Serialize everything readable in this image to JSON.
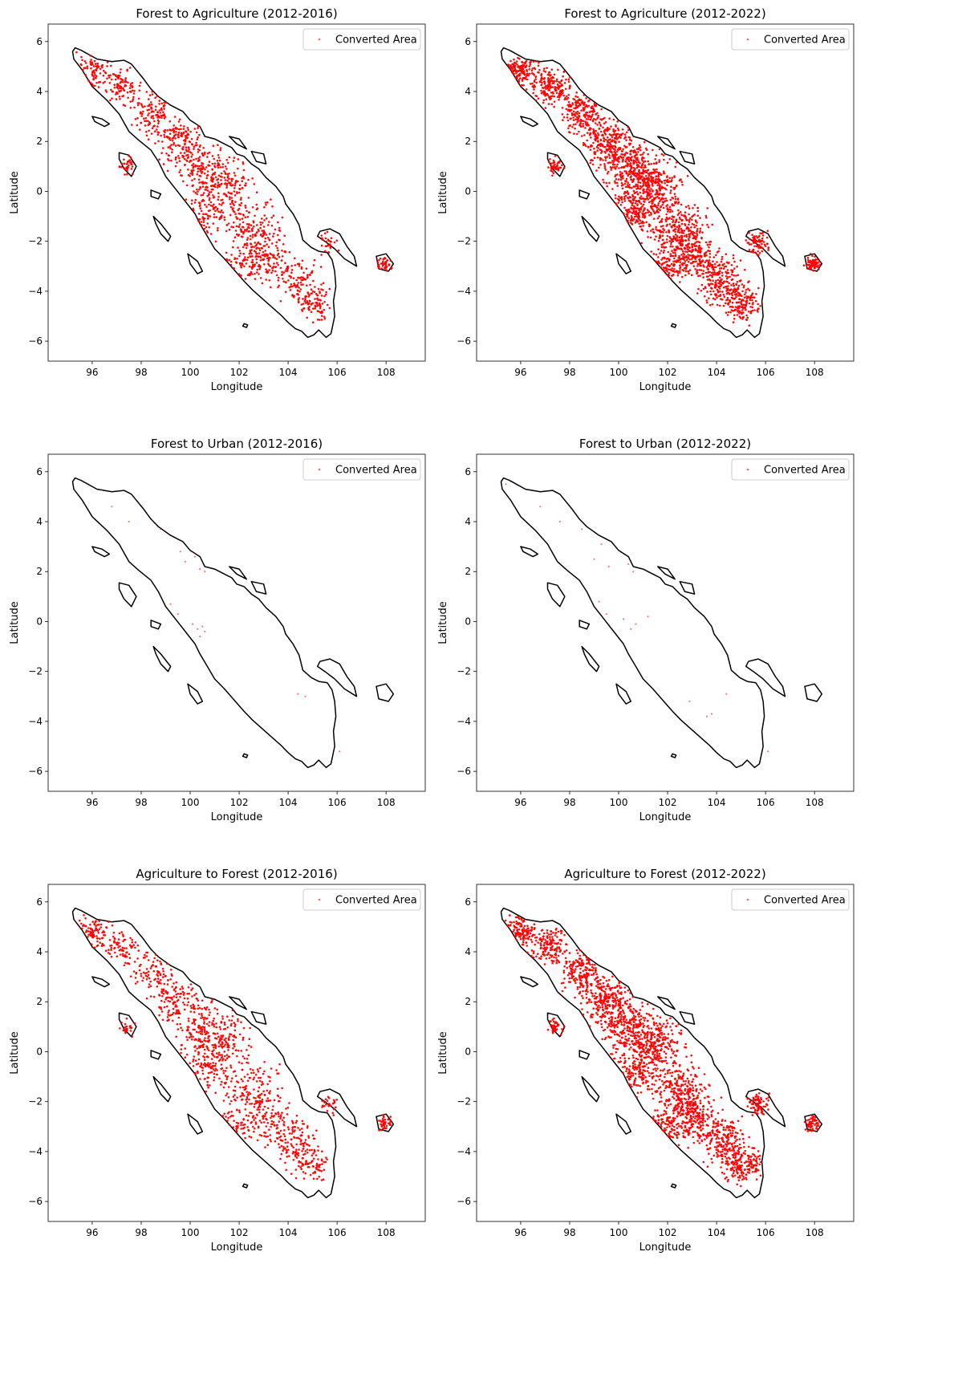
{
  "colors": {
    "point": "#ff0000",
    "coastline": "#000000",
    "background": "#ffffff"
  },
  "chart_data": [
    {
      "type": "scatter",
      "title": "Forest to Agriculture (2012-2016)",
      "xlabel": "Longitude",
      "ylabel": "Latitude",
      "xlim": [
        94.2,
        109.6
      ],
      "ylim": [
        -6.8,
        6.7
      ],
      "xticks": [
        "96",
        "98",
        "100",
        "102",
        "104",
        "106",
        "108"
      ],
      "yticks": [
        "-6",
        "-4",
        "-2",
        "0",
        "2",
        "4",
        "6"
      ],
      "legend": {
        "label": "Converted Area",
        "position": "top-right"
      },
      "density": 0.55,
      "seed": 11
    },
    {
      "type": "scatter",
      "title": "Forest to Agriculture (2012-2022)",
      "xlabel": "Longitude",
      "ylabel": "Latitude",
      "xlim": [
        94.2,
        109.6
      ],
      "ylim": [
        -6.8,
        6.7
      ],
      "xticks": [
        "96",
        "98",
        "100",
        "102",
        "104",
        "106",
        "108"
      ],
      "yticks": [
        "-6",
        "-4",
        "-2",
        "0",
        "2",
        "4",
        "6"
      ],
      "legend": {
        "label": "Converted Area",
        "position": "top-right"
      },
      "density": 1.0,
      "seed": 23
    },
    {
      "type": "scatter",
      "title": "Forest to Urban (2012-2016)",
      "xlabel": "Longitude",
      "ylabel": "Latitude",
      "xlim": [
        94.2,
        109.6
      ],
      "ylim": [
        -6.8,
        6.7
      ],
      "xticks": [
        "96",
        "98",
        "100",
        "102",
        "104",
        "106",
        "108"
      ],
      "yticks": [
        "-6",
        "-4",
        "-2",
        "0",
        "2",
        "4",
        "6"
      ],
      "legend": {
        "label": "Converted Area",
        "position": "top-right"
      },
      "points": [
        [
          96.8,
          4.6
        ],
        [
          97.5,
          4.0
        ],
        [
          98.8,
          3.7
        ],
        [
          99.6,
          2.8
        ],
        [
          99.8,
          2.4
        ],
        [
          100.2,
          2.6
        ],
        [
          100.4,
          2.1
        ],
        [
          100.6,
          2.0
        ],
        [
          99.2,
          0.7
        ],
        [
          99.5,
          0.3
        ],
        [
          100.1,
          -0.1
        ],
        [
          100.3,
          -0.3
        ],
        [
          100.5,
          -0.2
        ],
        [
          100.6,
          -0.4
        ],
        [
          100.4,
          -0.6
        ],
        [
          104.4,
          -2.9
        ],
        [
          104.7,
          -3.0
        ],
        [
          106.1,
          -5.2
        ]
      ]
    },
    {
      "type": "scatter",
      "title": "Forest to Urban (2012-2022)",
      "xlabel": "Longitude",
      "ylabel": "Latitude",
      "xlim": [
        94.2,
        109.6
      ],
      "ylim": [
        -6.8,
        6.7
      ],
      "xticks": [
        "96",
        "98",
        "100",
        "102",
        "104",
        "106",
        "108"
      ],
      "yticks": [
        "-6",
        "-4",
        "-2",
        "0",
        "2",
        "4",
        "6"
      ],
      "legend": {
        "label": "Converted Area",
        "position": "top-right"
      },
      "points": [
        [
          95.4,
          5.5
        ],
        [
          96.8,
          4.6
        ],
        [
          97.6,
          4.0
        ],
        [
          98.5,
          3.7
        ],
        [
          99.3,
          3.1
        ],
        [
          99.0,
          2.5
        ],
        [
          99.6,
          2.2
        ],
        [
          100.4,
          2.3
        ],
        [
          100.6,
          2.0
        ],
        [
          99.2,
          0.8
        ],
        [
          99.5,
          0.3
        ],
        [
          100.2,
          0.1
        ],
        [
          100.5,
          -0.3
        ],
        [
          100.7,
          -0.1
        ],
        [
          101.2,
          0.2
        ],
        [
          102.9,
          -3.2
        ],
        [
          103.6,
          -3.8
        ],
        [
          103.8,
          -3.7
        ],
        [
          104.4,
          -2.9
        ],
        [
          106.1,
          -5.2
        ]
      ]
    },
    {
      "type": "scatter",
      "title": "Agriculture to Forest (2012-2016)",
      "xlabel": "Longitude",
      "ylabel": "Latitude",
      "xlim": [
        94.2,
        109.6
      ],
      "ylim": [
        -6.8,
        6.7
      ],
      "xticks": [
        "96",
        "98",
        "100",
        "102",
        "104",
        "106",
        "108"
      ],
      "yticks": [
        "-6",
        "-4",
        "-2",
        "0",
        "2",
        "4",
        "6"
      ],
      "legend": {
        "label": "Converted Area",
        "position": "top-right"
      },
      "density": 0.5,
      "seed": 37
    },
    {
      "type": "scatter",
      "title": "Agriculture to Forest (2012-2022)",
      "xlabel": "Longitude",
      "ylabel": "Latitude",
      "xlim": [
        94.2,
        109.6
      ],
      "ylim": [
        -6.8,
        6.7
      ],
      "xticks": [
        "96",
        "98",
        "100",
        "102",
        "104",
        "106",
        "108"
      ],
      "yticks": [
        "-6",
        "-4",
        "-2",
        "0",
        "2",
        "4",
        "6"
      ],
      "legend": {
        "label": "Converted Area",
        "position": "top-right"
      },
      "density": 0.95,
      "seed": 53
    }
  ]
}
